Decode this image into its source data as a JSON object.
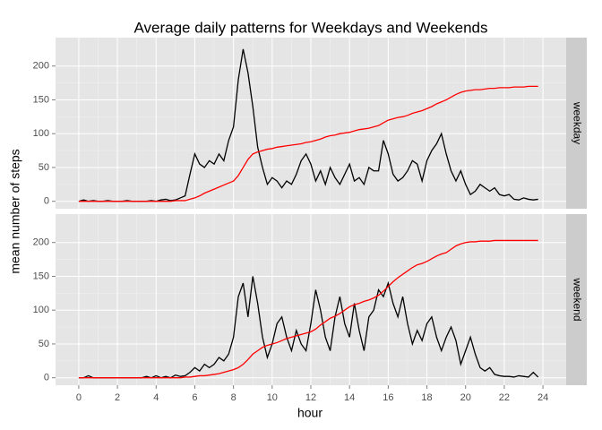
{
  "chart_data": {
    "type": "line",
    "title": "Average daily patterns for Weekdays and Weekends",
    "x_label": "hour",
    "y_label": "mean number of steps",
    "xlim": [
      -1.2,
      25.2
    ],
    "xticks": [
      0,
      2,
      4,
      6,
      8,
      10,
      12,
      14,
      16,
      18,
      20,
      22,
      24
    ],
    "ylim": [
      -11,
      242
    ],
    "yticks": [
      0,
      50,
      100,
      150,
      200
    ],
    "grid": true,
    "x": [
      0,
      0.25,
      0.5,
      0.75,
      1,
      1.25,
      1.5,
      1.75,
      2,
      2.25,
      2.5,
      2.75,
      3,
      3.25,
      3.5,
      3.75,
      4,
      4.25,
      4.5,
      4.75,
      5,
      5.25,
      5.5,
      5.75,
      6,
      6.25,
      6.5,
      6.75,
      7,
      7.25,
      7.5,
      7.75,
      8,
      8.25,
      8.5,
      8.75,
      9,
      9.25,
      9.5,
      9.75,
      10,
      10.25,
      10.5,
      10.75,
      11,
      11.25,
      11.5,
      11.75,
      12,
      12.25,
      12.5,
      12.75,
      13,
      13.25,
      13.5,
      13.75,
      14,
      14.25,
      14.5,
      14.75,
      15,
      15.25,
      15.5,
      15.75,
      16,
      16.25,
      16.5,
      16.75,
      17,
      17.25,
      17.5,
      17.75,
      18,
      18.25,
      18.5,
      18.75,
      19,
      19.25,
      19.5,
      19.75,
      20,
      20.25,
      20.5,
      20.75,
      21,
      21.25,
      21.5,
      21.75,
      22,
      22.25,
      22.5,
      22.75,
      23,
      23.25,
      23.5,
      23.75
    ],
    "panels": [
      {
        "strip": "weekday",
        "series": [
          {
            "color": "#000000",
            "values": [
              0,
              2,
              0,
              1,
              0,
              0,
              1,
              0,
              0,
              0,
              1,
              0,
              0,
              0,
              0,
              1,
              0,
              2,
              3,
              1,
              2,
              5,
              8,
              40,
              70,
              55,
              50,
              60,
              55,
              70,
              60,
              90,
              110,
              180,
              225,
              190,
              140,
              80,
              50,
              25,
              35,
              30,
              20,
              30,
              25,
              40,
              60,
              70,
              55,
              30,
              45,
              25,
              50,
              35,
              25,
              40,
              55,
              30,
              35,
              25,
              50,
              45,
              45,
              90,
              70,
              40,
              30,
              35,
              45,
              60,
              55,
              30,
              60,
              75,
              85,
              100,
              70,
              45,
              30,
              45,
              25,
              10,
              15,
              25,
              20,
              15,
              20,
              10,
              8,
              10,
              3,
              2,
              5,
              3,
              2,
              3
            ]
          },
          {
            "color": "#ff0000",
            "values": [
              0,
              0,
              0,
              0,
              0,
              0,
              0,
              0,
              0,
              0,
              0,
              0,
              0,
              0,
              0,
              0,
              0,
              0,
              0,
              0,
              1,
              1,
              1,
              3,
              5,
              8,
              12,
              15,
              18,
              21,
              24,
              27,
              30,
              38,
              50,
              62,
              70,
              73,
              75,
              77,
              78,
              80,
              81,
              82,
              83,
              84,
              85,
              87,
              88,
              90,
              92,
              95,
              97,
              98,
              100,
              101,
              102,
              104,
              106,
              107,
              108,
              110,
              112,
              116,
              120,
              122,
              124,
              125,
              127,
              130,
              132,
              134,
              137,
              140,
              144,
              147,
              150,
              154,
              158,
              161,
              163,
              164,
              165,
              165,
              166,
              167,
              167,
              168,
              168,
              168,
              169,
              169,
              169,
              170,
              170,
              170
            ]
          }
        ]
      },
      {
        "strip": "weekend",
        "series": [
          {
            "color": "#000000",
            "values": [
              0,
              0,
              3,
              0,
              0,
              0,
              0,
              0,
              0,
              0,
              0,
              0,
              0,
              0,
              2,
              0,
              3,
              0,
              2,
              0,
              4,
              2,
              3,
              8,
              15,
              10,
              20,
              15,
              20,
              30,
              25,
              35,
              60,
              120,
              140,
              90,
              150,
              110,
              60,
              30,
              50,
              80,
              90,
              60,
              40,
              70,
              50,
              40,
              80,
              130,
              100,
              60,
              40,
              90,
              120,
              80,
              60,
              110,
              70,
              40,
              90,
              100,
              130,
              120,
              140,
              110,
              90,
              120,
              80,
              50,
              70,
              55,
              80,
              90,
              60,
              40,
              60,
              75,
              55,
              20,
              40,
              60,
              35,
              15,
              10,
              15,
              5,
              3,
              2,
              2,
              1,
              3,
              2,
              1,
              8,
              1
            ]
          },
          {
            "color": "#ff0000",
            "values": [
              0,
              0,
              0,
              0,
              0,
              0,
              0,
              0,
              0,
              0,
              0,
              0,
              0,
              0,
              0,
              0,
              0,
              0,
              0,
              0,
              0,
              0,
              1,
              1,
              2,
              3,
              3,
              4,
              5,
              6,
              8,
              10,
              12,
              15,
              20,
              27,
              35,
              40,
              45,
              48,
              50,
              52,
              55,
              58,
              60,
              62,
              64,
              66,
              68,
              72,
              78,
              83,
              88,
              91,
              95,
              100,
              105,
              108,
              110,
              113,
              115,
              118,
              122,
              128,
              135,
              142,
              148,
              153,
              158,
              163,
              167,
              169,
              172,
              176,
              180,
              183,
              185,
              190,
              195,
              198,
              200,
              201,
              201,
              202,
              202,
              202,
              203,
              203,
              203,
              203,
              203,
              203,
              203,
              203,
              203,
              203
            ]
          }
        ]
      }
    ]
  }
}
